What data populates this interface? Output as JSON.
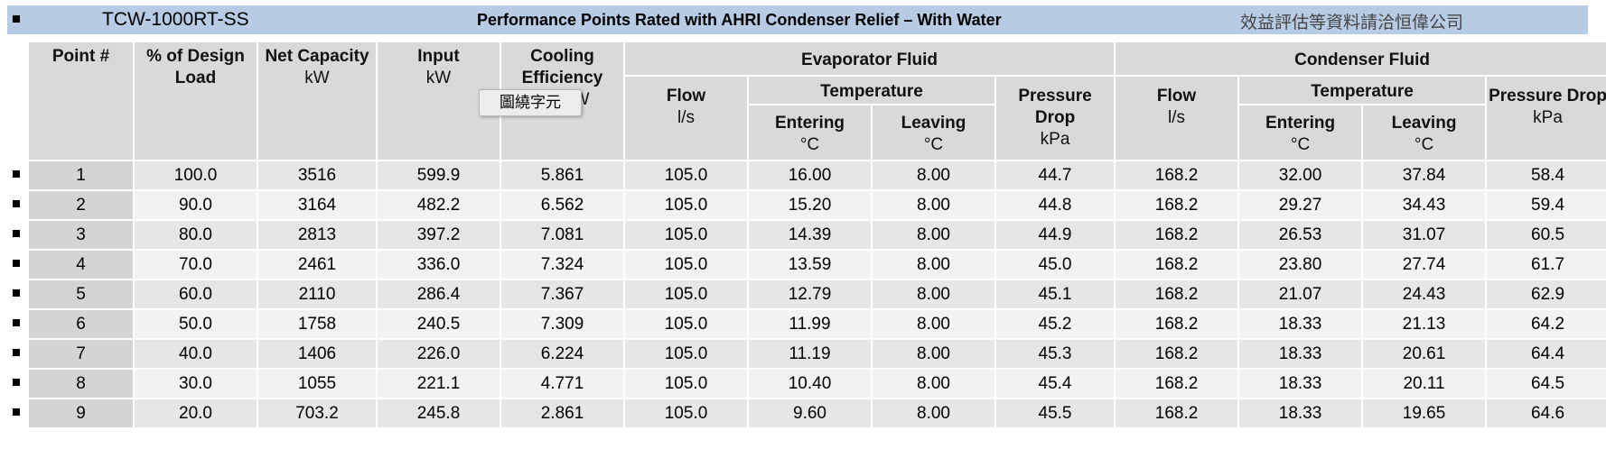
{
  "title_bar": {
    "model": "TCW-1000RT-SS",
    "title": "Performance Points Rated with AHRI Condenser Relief – With Water",
    "contact": "效益評估等資料請洽恒偉公司"
  },
  "header": {
    "point": "Point #",
    "load": "% of Design Load",
    "net_capacity": {
      "label": "Net Capacity",
      "unit": "kW"
    },
    "input": {
      "label": "Input",
      "unit": "kW"
    },
    "efficiency": {
      "label": "Cooling Efficiency",
      "unit": "kW/kW"
    },
    "evaporator": {
      "label": "Evaporator Fluid",
      "flow": "Flow",
      "flow_unit": "l/s",
      "temperature": "Temperature",
      "entering": "Entering",
      "leaving": "Leaving",
      "temp_unit": "°C",
      "pressure": "Pressure Drop",
      "pressure_unit": "kPa"
    },
    "condenser": {
      "label": "Condenser Fluid",
      "flow": "Flow",
      "flow_unit": "l/s",
      "temperature": "Temperature",
      "entering": "Entering",
      "leaving": "Leaving",
      "temp_unit": "°C",
      "pressure": "Pressure Drop",
      "pressure_unit": "kPa"
    }
  },
  "tooltip": "圖繞字元",
  "table": {
    "rows": [
      [
        "1",
        "100.0",
        "3516",
        "599.9",
        "5.861",
        "105.0",
        "16.00",
        "8.00",
        "44.7",
        "168.2",
        "32.00",
        "37.84",
        "58.4"
      ],
      [
        "2",
        "90.0",
        "3164",
        "482.2",
        "6.562",
        "105.0",
        "15.20",
        "8.00",
        "44.8",
        "168.2",
        "29.27",
        "34.43",
        "59.4"
      ],
      [
        "3",
        "80.0",
        "2813",
        "397.2",
        "7.081",
        "105.0",
        "14.39",
        "8.00",
        "44.9",
        "168.2",
        "26.53",
        "31.07",
        "60.5"
      ],
      [
        "4",
        "70.0",
        "2461",
        "336.0",
        "7.324",
        "105.0",
        "13.59",
        "8.00",
        "45.0",
        "168.2",
        "23.80",
        "27.74",
        "61.7"
      ],
      [
        "5",
        "60.0",
        "2110",
        "286.4",
        "7.367",
        "105.0",
        "12.79",
        "8.00",
        "45.1",
        "168.2",
        "21.07",
        "24.43",
        "62.9"
      ],
      [
        "6",
        "50.0",
        "1758",
        "240.5",
        "7.309",
        "105.0",
        "11.99",
        "8.00",
        "45.2",
        "168.2",
        "18.33",
        "21.13",
        "64.2"
      ],
      [
        "7",
        "40.0",
        "1406",
        "226.0",
        "6.224",
        "105.0",
        "11.19",
        "8.00",
        "45.3",
        "168.2",
        "18.33",
        "20.61",
        "64.4"
      ],
      [
        "8",
        "30.0",
        "1055",
        "221.1",
        "4.771",
        "105.0",
        "10.40",
        "8.00",
        "45.4",
        "168.2",
        "18.33",
        "20.11",
        "64.5"
      ],
      [
        "9",
        "20.0",
        "703.2",
        "245.8",
        "2.861",
        "105.0",
        "9.60",
        "8.00",
        "45.5",
        "168.2",
        "18.33",
        "19.65",
        "64.6"
      ]
    ]
  }
}
